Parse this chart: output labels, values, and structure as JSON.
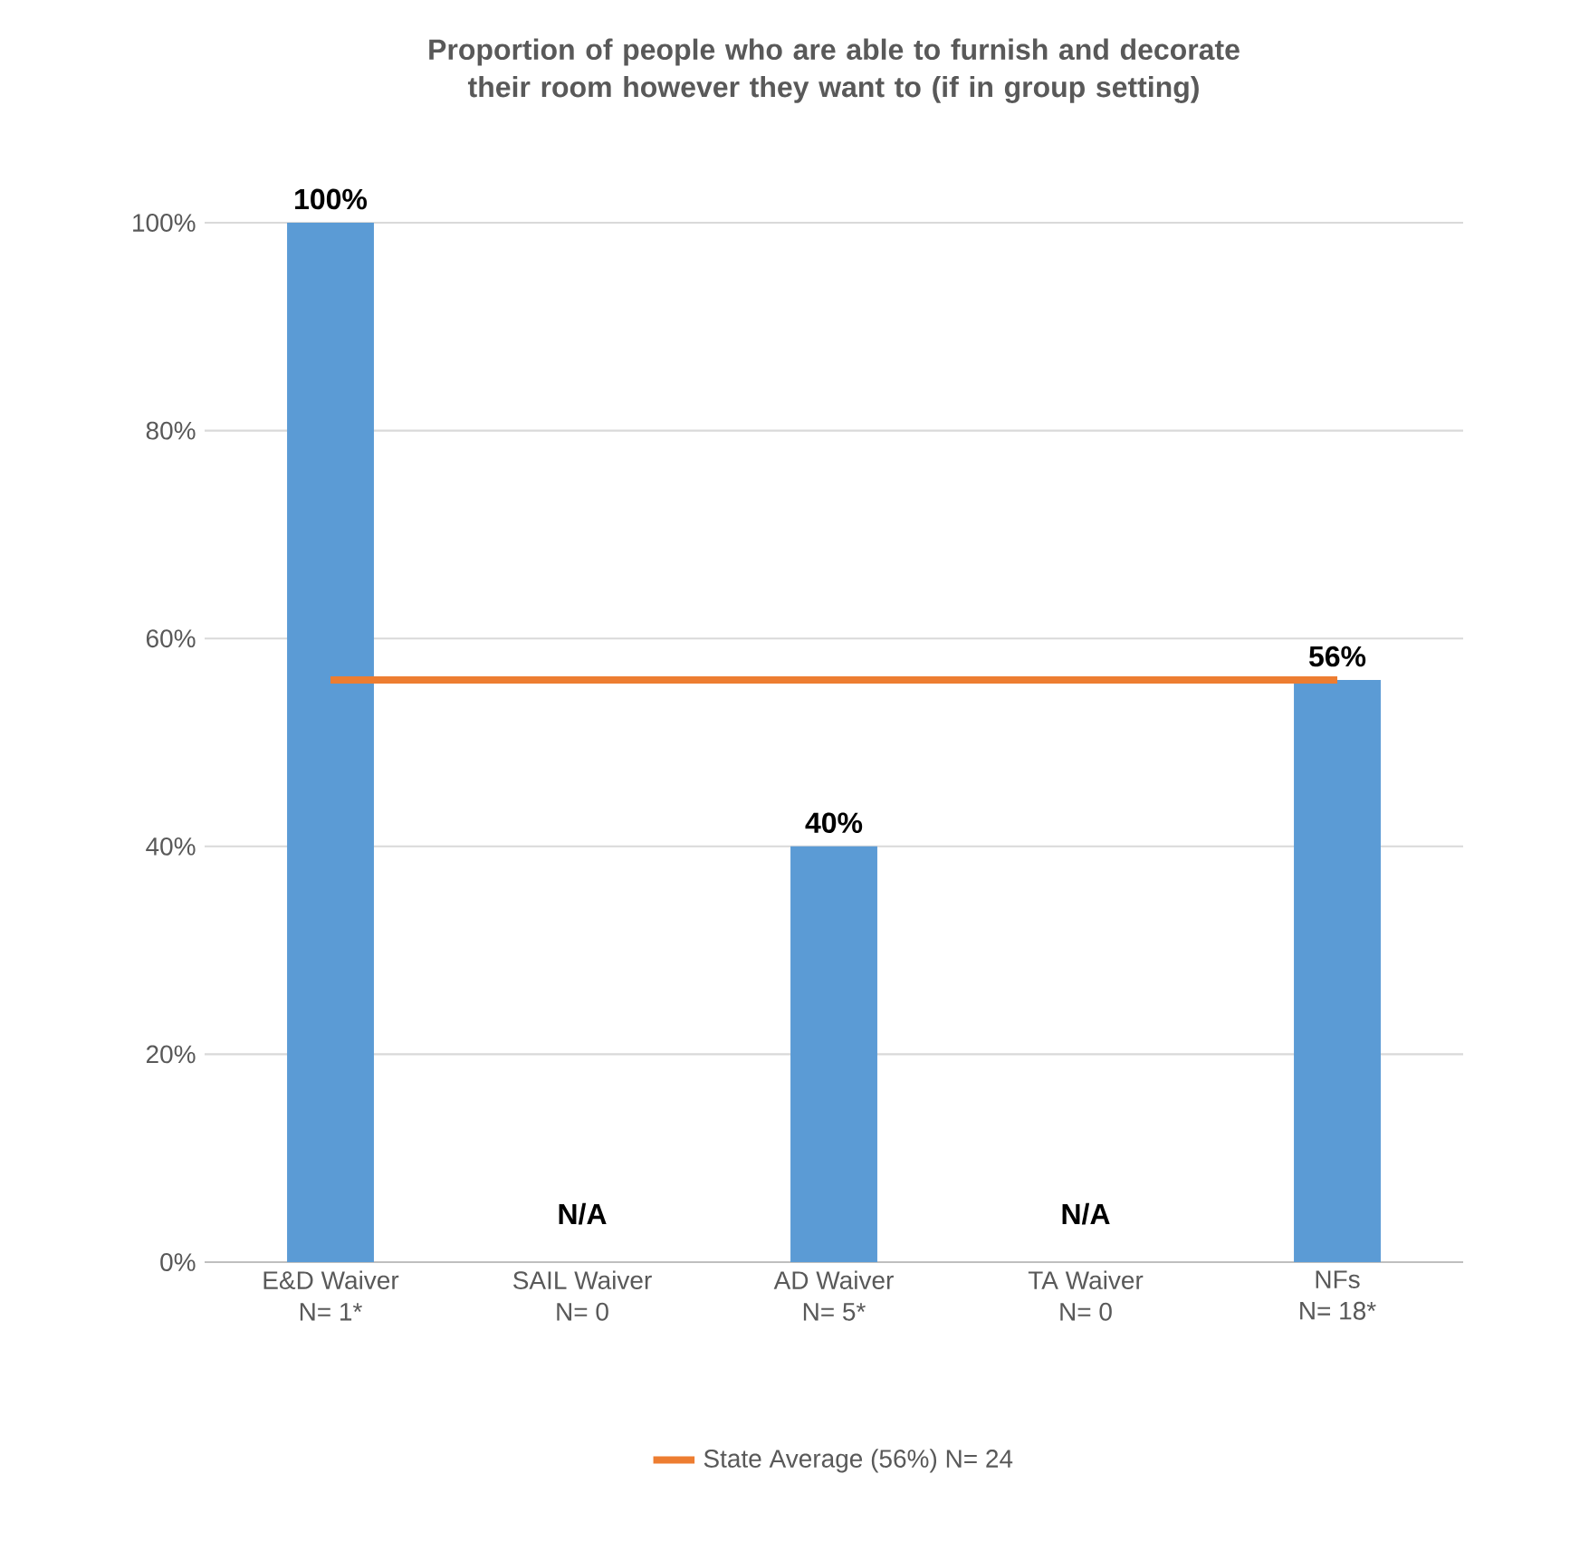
{
  "chart_data": {
    "type": "bar",
    "title": "Proportion of people who are able to furnish and decorate their room however they want to (if in group setting)",
    "categories": [
      "E&D Waiver\nN= 1*",
      "SAIL Waiver\nN= 0",
      "AD Waiver\nN= 5*",
      "TA Waiver\nN= 0",
      "NFs\nN= 18*"
    ],
    "series": [
      {
        "color": "#5b9bd5",
        "values": [
          100,
          null,
          40,
          null,
          56
        ],
        "value_labels": [
          "100%",
          "N/A",
          "40%",
          "N/A",
          "56%"
        ]
      },
      {
        "type": "line",
        "name": "State Average (56%) N= 24",
        "color": "#ed7d31",
        "values": [
          56,
          56,
          56,
          56,
          56
        ]
      }
    ],
    "ylim": [
      0,
      100
    ],
    "yticks": [
      {
        "value": 0,
        "label": "0%"
      },
      {
        "value": 20,
        "label": "20%"
      },
      {
        "value": 40,
        "label": "40%"
      },
      {
        "value": 60,
        "label": "60%"
      },
      {
        "value": 80,
        "label": "80%"
      },
      {
        "value": 100,
        "label": "100%"
      }
    ],
    "grid": "y",
    "legend": "bottom"
  }
}
